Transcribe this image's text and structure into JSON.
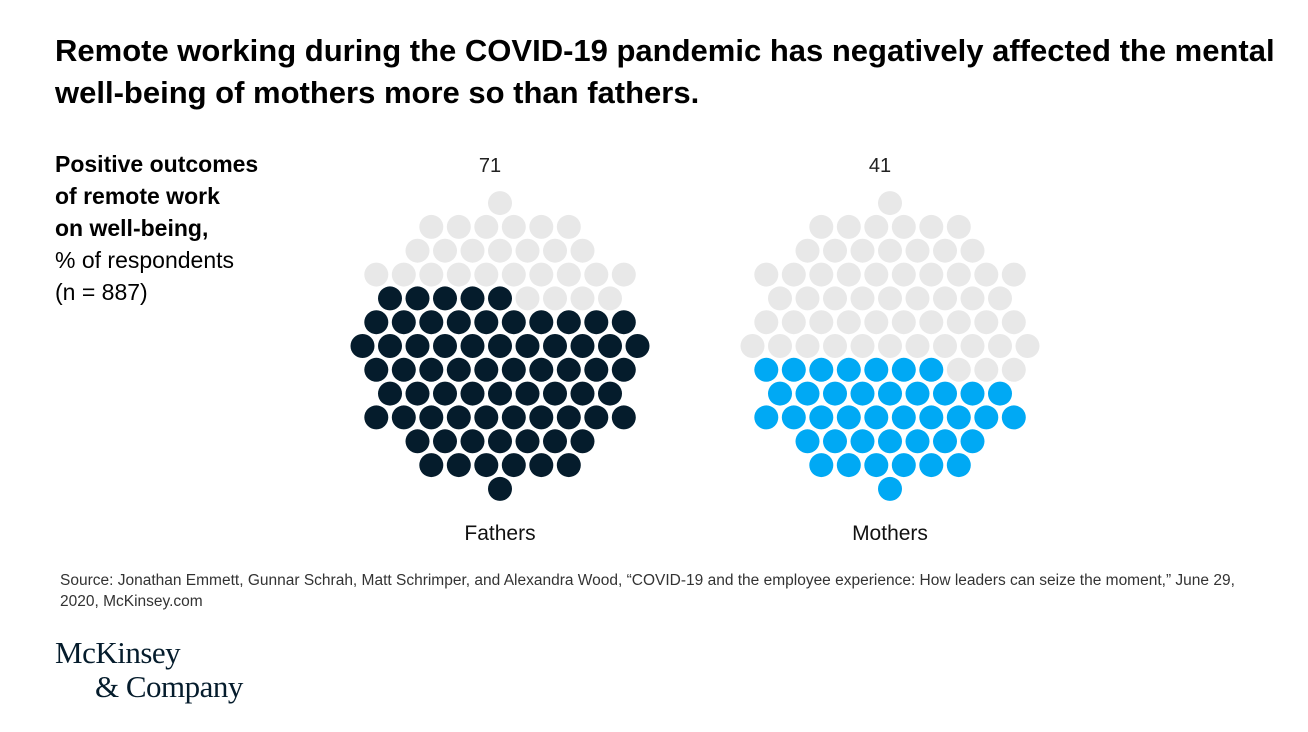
{
  "header": {
    "title": "Remote working during the COVID-19 pandemic has negatively affected the mental well-being of mothers more so than fathers."
  },
  "measure_label": {
    "line1": "Positive outcomes",
    "line2": "of remote work",
    "line3": "on well-being,",
    "line4": "% of respondents",
    "line5": "(n = 887)"
  },
  "chart_data": {
    "type": "dot-fill",
    "title": "Positive outcomes of remote work on well-being",
    "unit": "% of respondents",
    "n": "n = 887",
    "categories": [
      "Fathers",
      "Mothers"
    ],
    "values": [
      71,
      41
    ],
    "ylim": [
      0,
      100
    ],
    "colors": {
      "Fathers": "#051c2c",
      "Mothers": "#00a9f4",
      "empty": "#e8e8e8"
    }
  },
  "footer": {
    "source": "Source: Jonathan Emmett, Gunnar Schrah, Matt Schrimper, and Alexandra Wood, “COVID-19 and the employee experience: How leaders can seize the moment,” June 29, 2020, McKinsey.com"
  },
  "logo": {
    "line1": "McKinsey",
    "line2": "& Company"
  }
}
